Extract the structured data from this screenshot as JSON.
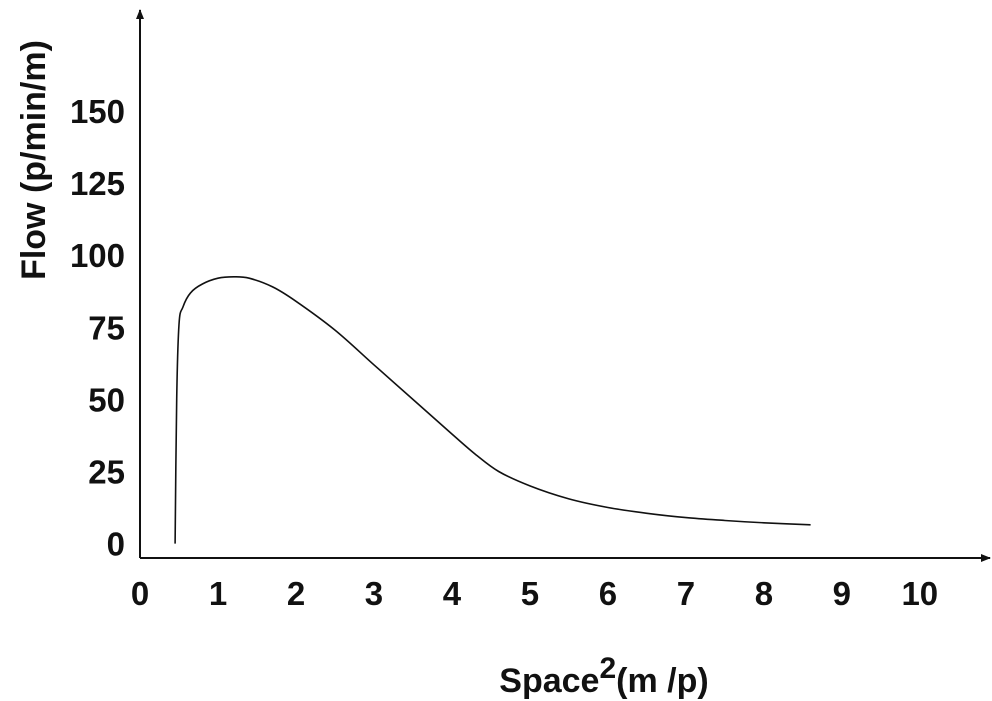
{
  "chart_data": {
    "type": "line",
    "title": "",
    "xlabel": "Space",
    "xlabel_superscript": "2",
    "xlabel_units": "(m /p)",
    "ylabel": "Flow (p/min/m)",
    "x_ticks": [
      "0",
      "1",
      "2",
      "3",
      "4",
      "5",
      "6",
      "7",
      "8",
      "9",
      "10"
    ],
    "y_ticks": [
      "0",
      "25",
      "50",
      "75",
      "100",
      "125",
      "150"
    ],
    "xlim": [
      0,
      10.9
    ],
    "ylim": [
      -5,
      185
    ],
    "grid": false,
    "legend": "none",
    "line_color": "#111111",
    "series": [
      {
        "x": [
          0.45,
          0.47,
          0.5,
          0.55,
          0.65,
          0.8,
          1.0,
          1.2,
          1.4,
          1.7,
          2.0,
          2.5,
          3.0,
          3.5,
          4.0,
          4.3,
          4.6,
          5.0,
          5.5,
          6.0,
          6.5,
          7.0,
          7.5,
          8.0,
          8.6
        ],
        "y": [
          0,
          50,
          76,
          82,
          87,
          90,
          92,
          92.5,
          92,
          89,
          84,
          74,
          62,
          50,
          38,
          31,
          25,
          20,
          15.5,
          12.5,
          10.5,
          9,
          8,
          7.2,
          6.5
        ]
      }
    ]
  }
}
